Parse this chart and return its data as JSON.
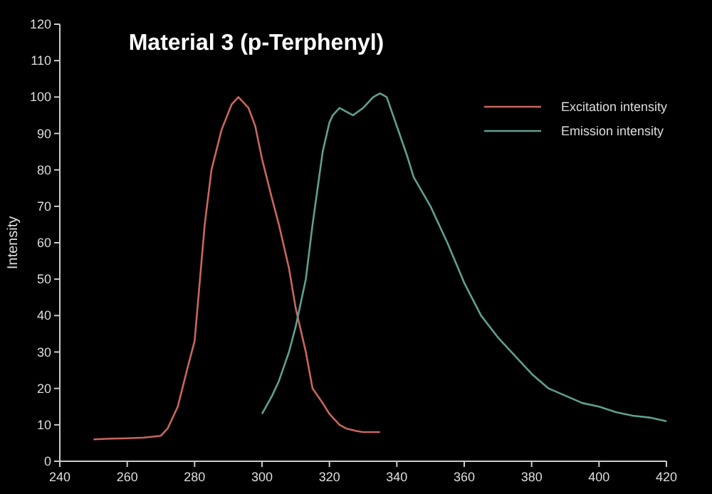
{
  "chart_data": {
    "type": "line",
    "title": "Material 3 (p-Terphenyl)",
    "ylabel": "Intensity",
    "xlim": [
      240,
      420
    ],
    "xticks": [
      240,
      260,
      280,
      300,
      320,
      340,
      360,
      380,
      400,
      420
    ],
    "ylim": [
      0,
      120
    ],
    "yticks": [
      0,
      10,
      20,
      30,
      40,
      50,
      60,
      70,
      80,
      90,
      100,
      110,
      120
    ],
    "grid": false,
    "legend": "top right",
    "marker": "none",
    "line_style": "solid",
    "series": [
      {
        "name": "Excitation intensity",
        "color": "#c8665f",
        "x": [
          250,
          255,
          260,
          265,
          270,
          272,
          275,
          278,
          280,
          283,
          285,
          288,
          291,
          293,
          296,
          298,
          300,
          303,
          305,
          308,
          310,
          313,
          315,
          318,
          320,
          323,
          325,
          328,
          330,
          335
        ],
        "values": [
          6,
          6.2,
          6.3,
          6.5,
          7,
          9,
          15,
          26,
          33,
          65,
          80,
          91,
          98,
          100,
          97,
          92,
          83,
          72,
          65,
          53,
          42,
          30,
          20,
          16,
          13,
          10,
          9,
          8.3,
          8,
          8
        ]
      },
      {
        "name": "Emission intensity",
        "color": "#5fa090",
        "x": [
          300,
          303,
          305,
          308,
          310,
          313,
          315,
          318,
          320,
          321,
          323,
          325,
          327,
          330,
          333,
          335,
          337,
          340,
          343,
          345,
          350,
          355,
          360,
          365,
          370,
          375,
          380,
          385,
          390,
          395,
          400,
          405,
          410,
          415,
          420
        ],
        "values": [
          13,
          18,
          22,
          30,
          37,
          50,
          65,
          85,
          93,
          95,
          97,
          96,
          95,
          97,
          100,
          101,
          100,
          92,
          84,
          78,
          70,
          60,
          49,
          40,
          34,
          29,
          24,
          20,
          18,
          16,
          15,
          13.5,
          12.5,
          12,
          11
        ]
      }
    ]
  }
}
